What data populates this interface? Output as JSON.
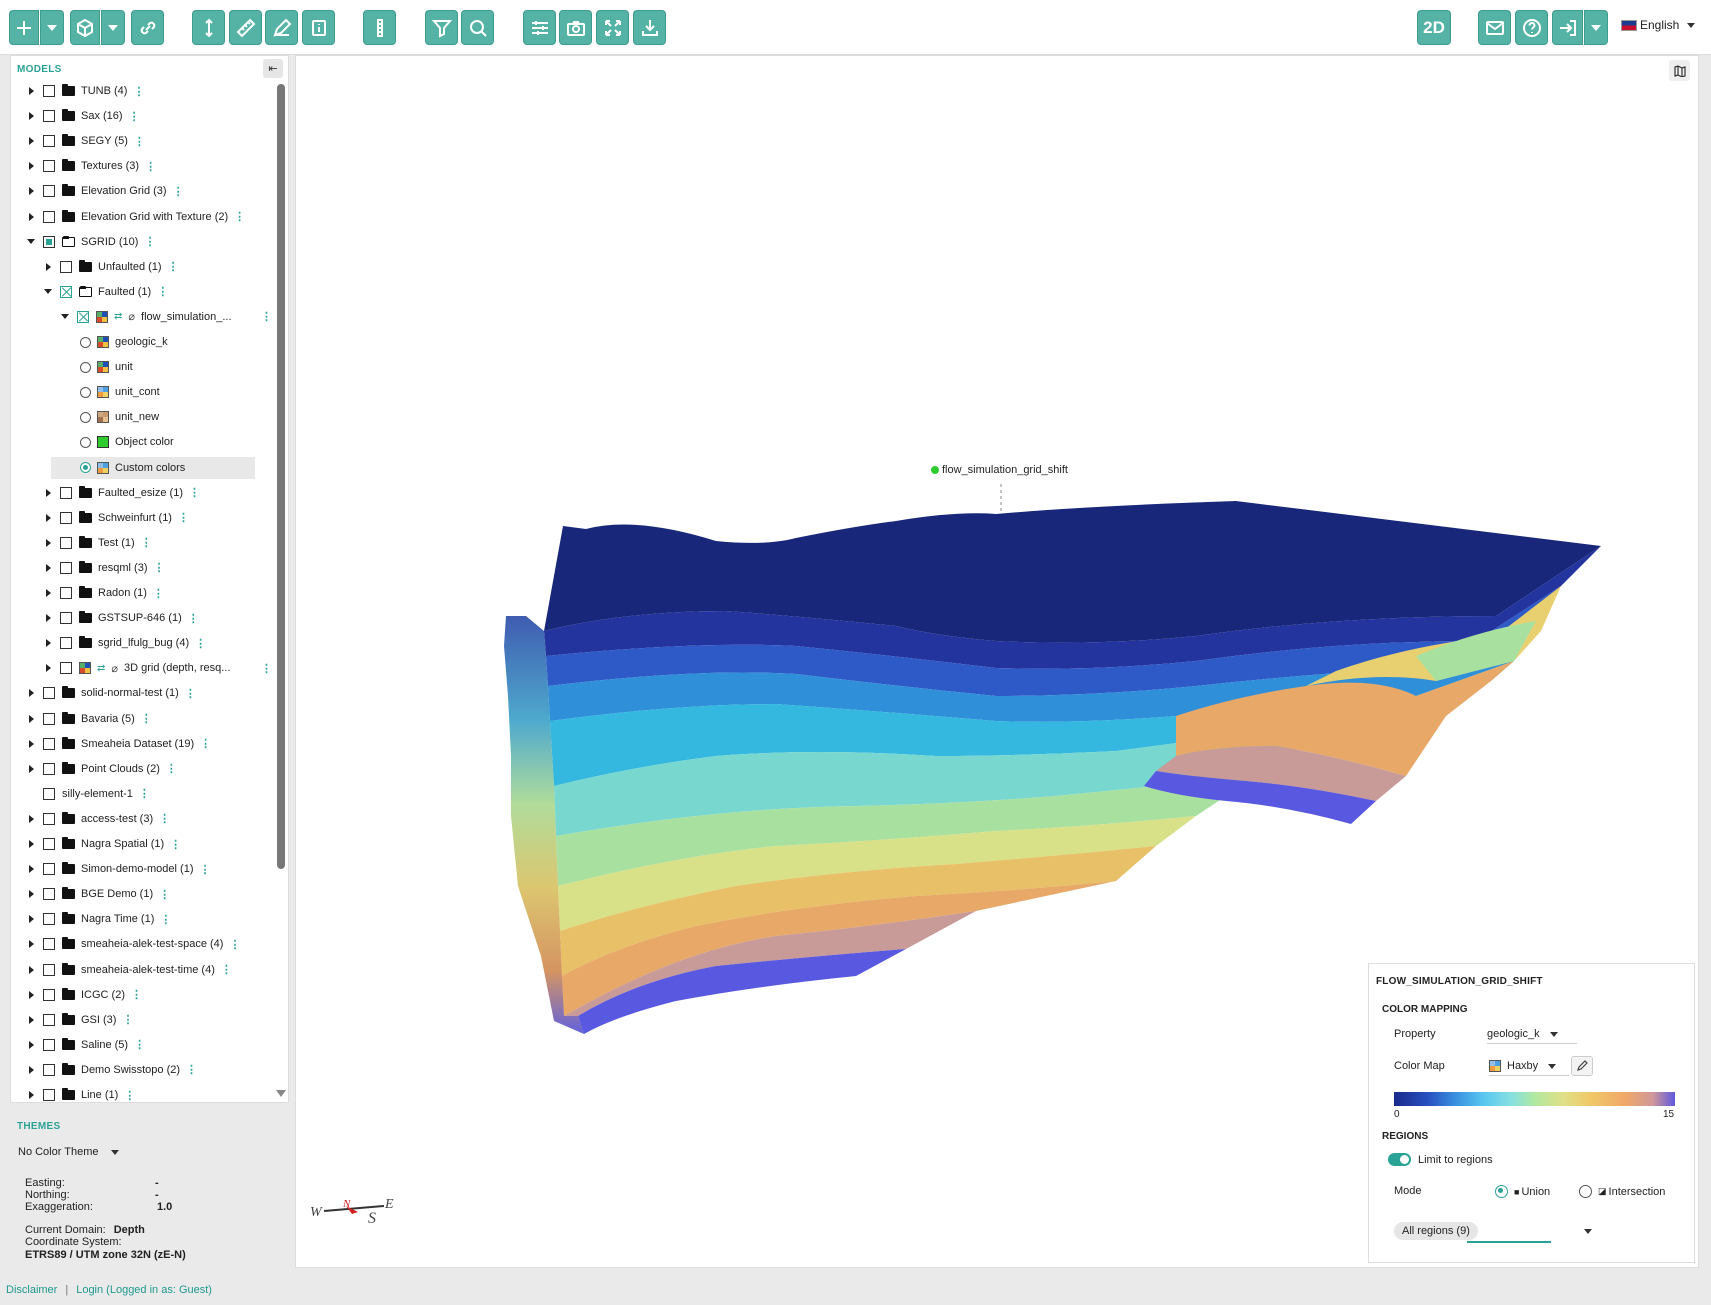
{
  "toolbar": {
    "view_toggle_label": "2D",
    "language": "English"
  },
  "models": {
    "title": "MODELS",
    "tree": [
      {
        "label": "TUNB (4)",
        "level": 0,
        "state": "closed",
        "kind": "folder"
      },
      {
        "label": "Sax (16)",
        "level": 0,
        "state": "closed",
        "kind": "folder"
      },
      {
        "label": "SEGY (5)",
        "level": 0,
        "state": "closed",
        "kind": "folder"
      },
      {
        "label": "Textures (3)",
        "level": 0,
        "state": "closed",
        "kind": "folder"
      },
      {
        "label": "Elevation Grid (3)",
        "level": 0,
        "state": "closed",
        "kind": "folder"
      },
      {
        "label": "Elevation Grid with Texture (2)",
        "level": 0,
        "state": "closed",
        "kind": "folder"
      },
      {
        "label": "SGRID (10)",
        "level": 0,
        "state": "open",
        "kind": "folder",
        "check": "partial"
      },
      {
        "label": "Unfaulted (1)",
        "level": 1,
        "state": "closed",
        "kind": "folder"
      },
      {
        "label": "Faulted (1)",
        "level": 1,
        "state": "open",
        "kind": "folder",
        "check": "cross"
      },
      {
        "label": "flow_simulation_...",
        "level": 2,
        "state": "open",
        "kind": "object",
        "check": "cross"
      },
      {
        "label": "geologic_k",
        "level": 3,
        "kind": "property",
        "icon": "b"
      },
      {
        "label": "unit",
        "level": 3,
        "kind": "property",
        "icon": "b"
      },
      {
        "label": "unit_cont",
        "level": 3,
        "kind": "property",
        "icon": "c"
      },
      {
        "label": "unit_new",
        "level": 3,
        "kind": "property",
        "icon": "d"
      },
      {
        "label": "Object color",
        "level": 3,
        "kind": "objcolor"
      },
      {
        "label": "Custom colors",
        "level": 3,
        "kind": "property",
        "icon": "c",
        "selected": true
      },
      {
        "label": "Faulted_esize (1)",
        "level": 1,
        "state": "closed",
        "kind": "folder"
      },
      {
        "label": "Schweinfurt (1)",
        "level": 1,
        "state": "closed",
        "kind": "folder"
      },
      {
        "label": "Test (1)",
        "level": 1,
        "state": "closed",
        "kind": "folder"
      },
      {
        "label": "resqml (3)",
        "level": 1,
        "state": "closed",
        "kind": "folder"
      },
      {
        "label": "Radon (1)",
        "level": 1,
        "state": "closed",
        "kind": "folder"
      },
      {
        "label": "GSTSUP-646 (1)",
        "level": 1,
        "state": "closed",
        "kind": "folder"
      },
      {
        "label": "sgrid_lfulg_bug (4)",
        "level": 1,
        "state": "closed",
        "kind": "folder"
      },
      {
        "label": "3D grid (depth, resq...",
        "level": 1,
        "state": "closed",
        "kind": "object"
      },
      {
        "label": "solid-normal-test (1)",
        "level": 0,
        "state": "closed",
        "kind": "folder"
      },
      {
        "label": "Bavaria (5)",
        "level": 0,
        "state": "closed",
        "kind": "folder"
      },
      {
        "label": "Smeaheia Dataset (19)",
        "level": 0,
        "state": "closed",
        "kind": "folder"
      },
      {
        "label": "Point Clouds (2)",
        "level": 0,
        "state": "closed",
        "kind": "folder"
      },
      {
        "label": "silly-element-1",
        "level": 0,
        "state": "none",
        "kind": "plain"
      },
      {
        "label": "access-test (3)",
        "level": 0,
        "state": "closed",
        "kind": "folder"
      },
      {
        "label": "Nagra Spatial (1)",
        "level": 0,
        "state": "closed",
        "kind": "folder"
      },
      {
        "label": "Simon-demo-model (1)",
        "level": 0,
        "state": "closed",
        "kind": "folder"
      },
      {
        "label": "BGE Demo (1)",
        "level": 0,
        "state": "closed",
        "kind": "folder"
      },
      {
        "label": "Nagra Time (1)",
        "level": 0,
        "state": "closed",
        "kind": "folder"
      },
      {
        "label": "smeaheia-alek-test-space (4)",
        "level": 0,
        "state": "closed",
        "kind": "folder"
      },
      {
        "label": "smeaheia-alek-test-time (4)",
        "level": 0,
        "state": "closed",
        "kind": "folder"
      },
      {
        "label": "ICGC (2)",
        "level": 0,
        "state": "closed",
        "kind": "folder"
      },
      {
        "label": "GSI (3)",
        "level": 0,
        "state": "closed",
        "kind": "folder"
      },
      {
        "label": "Saline (5)",
        "level": 0,
        "state": "closed",
        "kind": "folder"
      },
      {
        "label": "Demo Swisstopo (2)",
        "level": 0,
        "state": "closed",
        "kind": "folder"
      },
      {
        "label": "Line (1)",
        "level": 0,
        "state": "closed",
        "kind": "folder"
      }
    ]
  },
  "themes": {
    "title": "THEMES",
    "selected": "No Color Theme"
  },
  "coordinates": {
    "easting_label": "Easting:",
    "easting_value": "-",
    "northing_label": "Northing:",
    "northing_value": "-",
    "exaggeration_label": "Exaggeration:",
    "exaggeration_value": "1.0",
    "domain_label": "Current Domain:",
    "domain_value": "Depth",
    "crs_label": "Coordinate System:",
    "crs_value": "ETRS89 / UTM zone 32N (zE-N)"
  },
  "viewer": {
    "object_label": "flow_simulation_grid_shift",
    "compass": {
      "w": "W",
      "n": "N",
      "s": "S",
      "e": "E"
    }
  },
  "properties_panel": {
    "title": "FLOW_SIMULATION_GRID_SHIFT",
    "color_mapping_title": "COLOR MAPPING",
    "property_label": "Property",
    "property_value": "geologic_k",
    "colormap_label": "Color Map",
    "colormap_value": "Haxby",
    "range_min": "0",
    "range_max": "15",
    "regions_title": "REGIONS",
    "limit_label": "Limit to regions",
    "limit_enabled": true,
    "mode_label": "Mode",
    "mode_union": "Union",
    "mode_intersection": "Intersection",
    "mode_selected": "Union",
    "regions_chip": "All regions (9)"
  },
  "footer": {
    "disclaimer": "Disclaimer",
    "login": "Login (Logged in as: Guest)"
  },
  "colors": {
    "accent": "#55b3a6",
    "accent_dark": "#2aa397"
  }
}
